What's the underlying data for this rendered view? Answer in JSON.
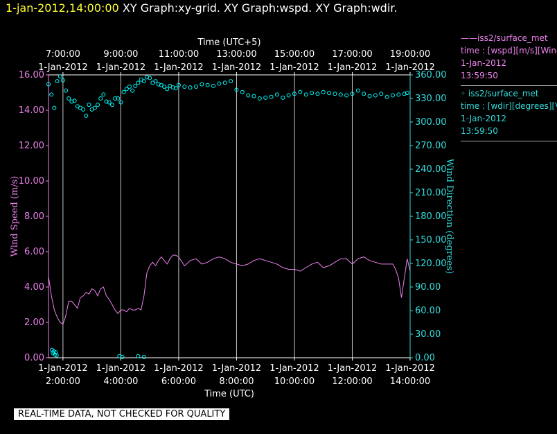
{
  "header": {
    "timestamp": "1-jan-2012,14:00:00",
    "graphs": "XY Graph:xy-grid.  XY Graph:wspd.  XY Graph:wdir."
  },
  "legend": {
    "wspd": {
      "series": "iss2/surface_met",
      "field": "time : [wspd][m/s][Wind",
      "date": "1-Jan-2012",
      "time": "13:59:50"
    },
    "wdir": {
      "series": "iss2/surface_met",
      "field": "time : [wdir][degrees][V",
      "date": "1-Jan-2012",
      "time": "13:59:50"
    }
  },
  "footer": {
    "notice": "REAL-TIME DATA, NOT CHECKED FOR QUALITY"
  },
  "colors": {
    "wspd": "#ee82ee",
    "wdir": "#00ffff",
    "axis_left": "#ee82ee",
    "axis_right": "#33dddd",
    "grid": "#c8c8c8",
    "header_stamp": "#ffff33"
  },
  "chart_data": {
    "type": "line",
    "x_range_utc_hours": [
      1.5,
      14.0
    ],
    "top_axis": {
      "label": "Time (UTC+5)",
      "ticks": [
        {
          "at": 2,
          "time": "7:00:00",
          "date": "1-Jan-2012"
        },
        {
          "at": 4,
          "time": "9:00:00",
          "date": "1-Jan-2012"
        },
        {
          "at": 6,
          "time": "11:00:00",
          "date": "1-Jan-2012"
        },
        {
          "at": 8,
          "time": "13:00:00",
          "date": "1-Jan-2012"
        },
        {
          "at": 10,
          "time": "15:00:00",
          "date": "1-Jan-2012"
        },
        {
          "at": 12,
          "time": "17:00:00",
          "date": "1-Jan-2012"
        },
        {
          "at": 14,
          "time": "19:00:00",
          "date": "1-Jan-2012"
        }
      ]
    },
    "bottom_axis": {
      "label": "Time (UTC)",
      "ticks": [
        {
          "at": 2,
          "time": "2:00:00",
          "date": "1-Jan-2012"
        },
        {
          "at": 4,
          "time": "4:00:00",
          "date": "1-Jan-2012"
        },
        {
          "at": 6,
          "time": "6:00:00",
          "date": "1-Jan-2012"
        },
        {
          "at": 8,
          "time": "8:00:00",
          "date": "1-Jan-2012"
        },
        {
          "at": 10,
          "time": "10:00:00",
          "date": "1-Jan-2012"
        },
        {
          "at": 12,
          "time": "12:00:00",
          "date": "1-Jan-2012"
        },
        {
          "at": 14,
          "time": "14:00:00",
          "date": "1-Jan-2012"
        }
      ]
    },
    "left_axis": {
      "label": "Wind Speed (m/s)",
      "range": [
        0,
        16
      ],
      "ticks": [
        "0.00",
        "2.00",
        "4.00",
        "6.00",
        "8.00",
        "10.00",
        "12.00",
        "14.00",
        "16.00"
      ]
    },
    "right_axis": {
      "label": "Wind Direction (degrees)",
      "range": [
        0,
        360
      ],
      "ticks": [
        "0.00",
        "30.00",
        "60.00",
        "90.00",
        "120.00",
        "150.00",
        "180.00",
        "210.00",
        "240.00",
        "270.00",
        "300.00",
        "330.00",
        "360.00"
      ]
    },
    "grid": "vertical",
    "series": [
      {
        "name": "iss2/surface_met",
        "type": "line",
        "axis": "left",
        "x": [
          1.5,
          1.6,
          1.7,
          1.8,
          1.9,
          2.0,
          2.1,
          2.2,
          2.3,
          2.4,
          2.5,
          2.6,
          2.7,
          2.8,
          2.9,
          3.0,
          3.1,
          3.2,
          3.3,
          3.4,
          3.5,
          3.6,
          3.7,
          3.8,
          3.9,
          4.0,
          4.1,
          4.2,
          4.3,
          4.4,
          4.5,
          4.6,
          4.7,
          4.8,
          4.9,
          5.0,
          5.1,
          5.2,
          5.3,
          5.4,
          5.5,
          5.6,
          5.7,
          5.8,
          5.9,
          6.0,
          6.2,
          6.4,
          6.6,
          6.8,
          7.0,
          7.2,
          7.4,
          7.6,
          7.8,
          8.0,
          8.2,
          8.4,
          8.6,
          8.8,
          9.0,
          9.2,
          9.4,
          9.6,
          9.8,
          10.0,
          10.2,
          10.4,
          10.6,
          10.8,
          11.0,
          11.2,
          11.4,
          11.6,
          11.8,
          12.0,
          12.2,
          12.4,
          12.6,
          12.8,
          13.0,
          13.2,
          13.4,
          13.5,
          13.6,
          13.7,
          13.8,
          13.9,
          14.0
        ],
        "y": [
          4.6,
          3.5,
          2.7,
          2.3,
          2.0,
          1.9,
          2.4,
          3.2,
          3.2,
          3.0,
          2.8,
          3.4,
          3.5,
          3.7,
          3.6,
          3.9,
          3.8,
          3.5,
          3.9,
          4.0,
          3.5,
          3.3,
          3.0,
          2.7,
          2.5,
          2.7,
          2.7,
          2.6,
          2.8,
          2.7,
          2.7,
          2.8,
          2.7,
          3.5,
          4.8,
          5.2,
          5.4,
          5.2,
          5.5,
          5.7,
          5.5,
          5.3,
          5.6,
          5.8,
          5.8,
          5.7,
          5.2,
          5.5,
          5.6,
          5.3,
          5.4,
          5.6,
          5.7,
          5.6,
          5.4,
          5.3,
          5.2,
          5.3,
          5.5,
          5.6,
          5.5,
          5.4,
          5.3,
          5.1,
          5.0,
          5.0,
          4.9,
          5.1,
          5.3,
          5.4,
          5.1,
          5.2,
          5.4,
          5.6,
          5.6,
          5.3,
          5.6,
          5.7,
          5.5,
          5.4,
          5.3,
          5.3,
          5.3,
          5.0,
          4.5,
          3.4,
          4.5,
          5.6,
          4.9
        ]
      },
      {
        "name": "iss2/surface_met",
        "type": "scatter",
        "axis": "right",
        "x": [
          1.5,
          1.6,
          1.7,
          1.8,
          1.9,
          2.0,
          2.1,
          2.2,
          2.3,
          2.4,
          2.5,
          2.6,
          2.7,
          2.8,
          2.9,
          3.0,
          3.1,
          3.2,
          3.3,
          3.4,
          3.5,
          3.6,
          3.7,
          3.8,
          3.9,
          4.0,
          4.1,
          4.2,
          4.3,
          4.4,
          4.5,
          4.6,
          4.7,
          4.8,
          4.9,
          5.0,
          5.1,
          5.2,
          5.3,
          5.4,
          5.5,
          5.6,
          5.7,
          5.8,
          5.9,
          6.0,
          6.2,
          6.4,
          6.6,
          6.8,
          7.0,
          7.2,
          7.4,
          7.6,
          7.8,
          8.0,
          8.2,
          8.4,
          8.6,
          8.8,
          9.0,
          9.2,
          9.4,
          9.6,
          9.8,
          10.0,
          10.2,
          10.4,
          10.6,
          10.8,
          11.0,
          11.2,
          11.4,
          11.6,
          11.8,
          12.0,
          12.2,
          12.4,
          12.6,
          12.8,
          13.0,
          13.2,
          13.4,
          13.6,
          13.8,
          13.9
        ],
        "y": [
          348,
          335,
          318,
          352,
          358,
          353,
          340,
          330,
          326,
          327,
          320,
          318,
          316,
          308,
          322,
          316,
          318,
          322,
          330,
          335,
          326,
          325,
          322,
          330,
          330,
          325,
          338,
          342,
          345,
          340,
          346,
          350,
          354,
          352,
          357,
          356,
          350,
          352,
          348,
          347,
          345,
          342,
          346,
          344,
          343,
          347,
          345,
          344,
          345,
          348,
          347,
          346,
          349,
          350,
          352,
          341,
          338,
          334,
          333,
          330,
          331,
          332,
          335,
          331,
          334,
          336,
          338,
          335,
          337,
          336,
          338,
          337,
          336,
          335,
          334,
          336,
          340,
          336,
          333,
          334,
          336,
          332,
          334,
          335,
          336,
          337
        ],
        "outliers": {
          "x": [
            1.62,
            1.65,
            1.68,
            1.72,
            1.75,
            1.78,
            3.95,
            4.05,
            4.6,
            4.8
          ],
          "y": [
            10,
            6,
            8,
            4,
            7,
            3,
            2,
            1,
            2,
            1
          ]
        }
      }
    ]
  }
}
